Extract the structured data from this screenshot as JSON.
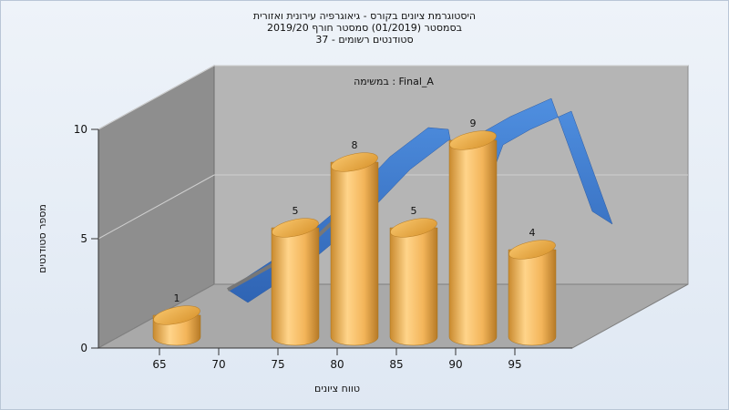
{
  "header": {
    "title_line1": "היסטוגרמת ציונים בקורס - גיאוגרפיה עירונית ואזורית",
    "title_line2": "בסמסטר  (01/2019)  סמסטר חורף 2019/20",
    "title_line3": "סטודנטים רשומים - 37"
  },
  "chart_data": {
    "type": "bar",
    "annotation": "Final_A : במשימה",
    "xlabel": "טווח ציונים",
    "ylabel": "מספר סטודנטים",
    "ylim": [
      0,
      10
    ],
    "y_ticks": [
      0,
      5,
      10
    ],
    "x_ticks": [
      65,
      70,
      75,
      80,
      85,
      90,
      95
    ],
    "bars": [
      {
        "x": 65,
        "value": 1
      },
      {
        "x": 75,
        "value": 5
      },
      {
        "x": 80,
        "value": 8
      },
      {
        "x": 85,
        "value": 5
      },
      {
        "x": 90,
        "value": 9
      },
      {
        "x": 95,
        "value": 4
      }
    ],
    "grid": true,
    "colors": {
      "bar": "#f0b050",
      "ribbon": "#3a78c9",
      "back_wall": "#b4b4b4",
      "side_wall": "#8c8c8c",
      "floor": "#a8a8a8"
    }
  }
}
